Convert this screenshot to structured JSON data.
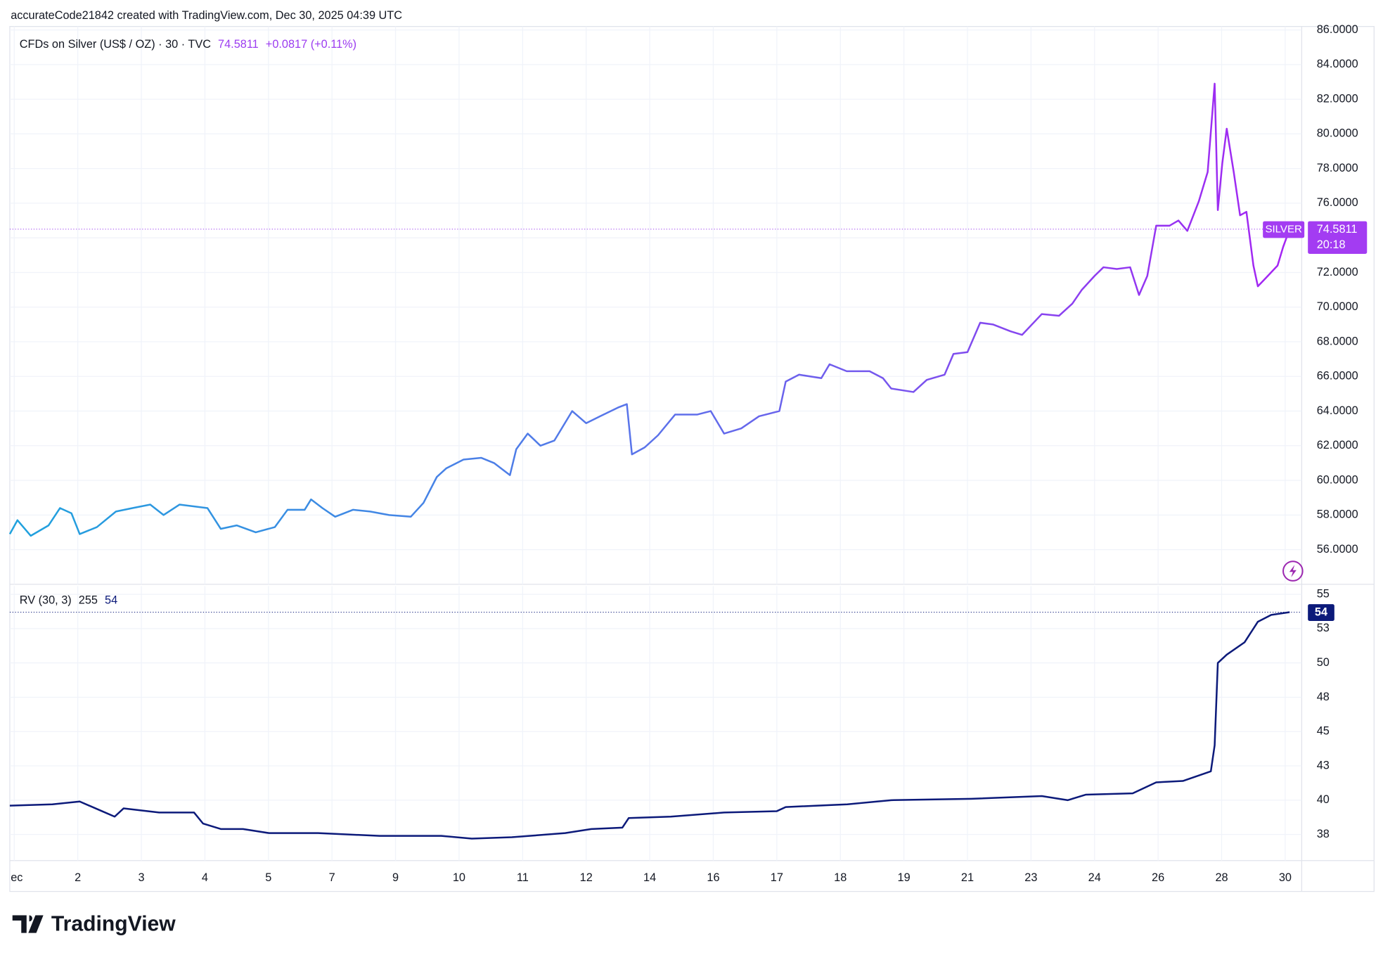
{
  "header": "accurateCode21842 created with TradingView.com, Dec 30, 2025 04:39 UTC",
  "logo": "TradingView",
  "chart_data": [
    {
      "type": "line",
      "title": "CFDs on Silver (US$ / OZ) · 30 · TVC",
      "last": "74.5811",
      "change": "+0.0817 (+0.11%)",
      "symbol": "SILVER",
      "price_label": "74.5811",
      "countdown": "20:18",
      "colors": [
        "#1fa2dd",
        "#5b73ea",
        "#a524f3"
      ],
      "xlim": [
        -0.07,
        20.26
      ],
      "ylim": [
        54.0,
        86.2
      ],
      "xticks": [
        {
          "value": 0,
          "label": "ec"
        },
        {
          "value": 1,
          "label": "2"
        },
        {
          "value": 2,
          "label": "3"
        },
        {
          "value": 3,
          "label": "4"
        },
        {
          "value": 4,
          "label": "5"
        },
        {
          "value": 5,
          "label": "7"
        },
        {
          "value": 6,
          "label": "9"
        },
        {
          "value": 7,
          "label": "10"
        },
        {
          "value": 8,
          "label": "11"
        },
        {
          "value": 9,
          "label": "12"
        },
        {
          "value": 10,
          "label": "14"
        },
        {
          "value": 11,
          "label": "16"
        },
        {
          "value": 12,
          "label": "17"
        },
        {
          "value": 13,
          "label": "18"
        },
        {
          "value": 14,
          "label": "19"
        },
        {
          "value": 15,
          "label": "21"
        },
        {
          "value": 16,
          "label": "23"
        },
        {
          "value": 17,
          "label": "24"
        },
        {
          "value": 18,
          "label": "26"
        },
        {
          "value": 19,
          "label": "28"
        },
        {
          "value": 20,
          "label": "30"
        }
      ],
      "yticks": [
        {
          "value": 56,
          "label": "56.0000"
        },
        {
          "value": 58,
          "label": "58.0000"
        },
        {
          "value": 60,
          "label": "60.0000"
        },
        {
          "value": 62,
          "label": "62.0000"
        },
        {
          "value": 64,
          "label": "64.0000"
        },
        {
          "value": 66,
          "label": "66.0000"
        },
        {
          "value": 68,
          "label": "68.0000"
        },
        {
          "value": 70,
          "label": "70.0000"
        },
        {
          "value": 72,
          "label": "72.0000"
        },
        {
          "value": 74,
          "label": "74.0000"
        },
        {
          "value": 76,
          "label": "76.0000"
        },
        {
          "value": 78,
          "label": "78.0000"
        },
        {
          "value": 80,
          "label": "80.0000"
        },
        {
          "value": 82,
          "label": "82.0000"
        },
        {
          "value": 84,
          "label": "84.0000"
        },
        {
          "value": 86,
          "label": "86.0000"
        }
      ],
      "x": [
        -0.07,
        0.05,
        0.26,
        0.54,
        0.72,
        0.9,
        1.03,
        1.3,
        1.6,
        1.86,
        2.14,
        2.35,
        2.6,
        3.04,
        3.25,
        3.5,
        3.8,
        4.1,
        4.3,
        4.57,
        4.67,
        4.85,
        5.05,
        5.33,
        5.6,
        5.9,
        6.24,
        6.44,
        6.65,
        6.8,
        7.07,
        7.35,
        7.55,
        7.8,
        7.9,
        8.08,
        8.28,
        8.5,
        8.78,
        9.0,
        9.22,
        9.5,
        9.64,
        9.72,
        9.92,
        10.13,
        10.4,
        10.75,
        10.96,
        11.17,
        11.44,
        11.72,
        12.04,
        12.14,
        12.35,
        12.7,
        12.83,
        13.1,
        13.46,
        13.67,
        13.8,
        14.15,
        14.36,
        14.64,
        14.78,
        15.0,
        15.2,
        15.4,
        15.68,
        15.86,
        16.17,
        16.44,
        16.65,
        16.8,
        17.0,
        17.14,
        17.35,
        17.56,
        17.7,
        17.83,
        17.97,
        18.18,
        18.32,
        18.46,
        18.64,
        18.78,
        18.89,
        18.94,
        19.01,
        19.08,
        19.19,
        19.29,
        19.39,
        19.5,
        19.57,
        19.7,
        19.88,
        19.97,
        20.07
      ],
      "values": [
        56.9,
        57.7,
        56.8,
        57.4,
        58.4,
        58.1,
        56.9,
        57.3,
        58.2,
        58.4,
        58.6,
        58.0,
        58.6,
        58.4,
        57.2,
        57.4,
        57.0,
        57.3,
        58.3,
        58.3,
        58.9,
        58.4,
        57.9,
        58.3,
        58.2,
        58.0,
        57.9,
        58.7,
        60.2,
        60.7,
        61.2,
        61.3,
        61.0,
        60.3,
        61.8,
        62.7,
        62.0,
        62.3,
        64.0,
        63.3,
        63.7,
        64.2,
        64.4,
        61.5,
        61.9,
        62.6,
        63.8,
        63.8,
        64.0,
        62.7,
        63.0,
        63.7,
        64.0,
        65.7,
        66.1,
        65.9,
        66.7,
        66.3,
        66.3,
        65.9,
        65.3,
        65.1,
        65.8,
        66.1,
        67.3,
        67.4,
        69.1,
        69.0,
        68.6,
        68.4,
        69.6,
        69.5,
        70.2,
        71.0,
        71.8,
        72.3,
        72.2,
        72.3,
        70.7,
        71.8,
        74.7,
        74.7,
        75.0,
        74.4,
        76.1,
        77.8,
        82.9,
        75.6,
        78.3,
        80.3,
        77.8,
        75.3,
        75.5,
        72.4,
        71.2,
        71.7,
        72.4,
        73.5,
        74.5
      ]
    },
    {
      "type": "line",
      "title": "RV (30, 3)",
      "param": "255",
      "last": "54",
      "color": "#0c1a7a",
      "xlim": [
        -0.07,
        20.26
      ],
      "ylim": [
        35.6,
        55.6
      ],
      "yticks": [
        {
          "value": 37.5,
          "label": "38"
        },
        40,
        {
          "value": 42.5,
          "label": "43"
        },
        45,
        {
          "value": 47.5,
          "label": "48"
        },
        50,
        {
          "value": 52.5,
          "label": "53"
        },
        55
      ],
      "x": [
        -0.07,
        0.6,
        1.03,
        1.38,
        1.58,
        1.72,
        2.28,
        2.83,
        2.97,
        3.25,
        3.6,
        4.01,
        4.78,
        5.75,
        6.72,
        7.2,
        7.83,
        8.67,
        9.08,
        9.57,
        9.67,
        10.33,
        11.17,
        12.0,
        12.14,
        13.11,
        13.8,
        15.06,
        16.17,
        16.58,
        16.86,
        17.6,
        17.97,
        18.39,
        18.83,
        18.89,
        18.94,
        19.08,
        19.36,
        19.57,
        19.78,
        20.07
      ],
      "values": [
        39.6,
        39.7,
        39.9,
        39.2,
        38.8,
        39.4,
        39.1,
        39.1,
        38.3,
        37.9,
        37.9,
        37.6,
        37.6,
        37.4,
        37.4,
        37.2,
        37.3,
        37.6,
        37.9,
        38.0,
        38.7,
        38.8,
        39.1,
        39.2,
        39.5,
        39.7,
        40.0,
        40.1,
        40.3,
        40.0,
        40.4,
        40.5,
        41.3,
        41.4,
        42.1,
        44.0,
        50.0,
        50.6,
        51.5,
        53.0,
        53.5,
        53.7
      ]
    }
  ]
}
